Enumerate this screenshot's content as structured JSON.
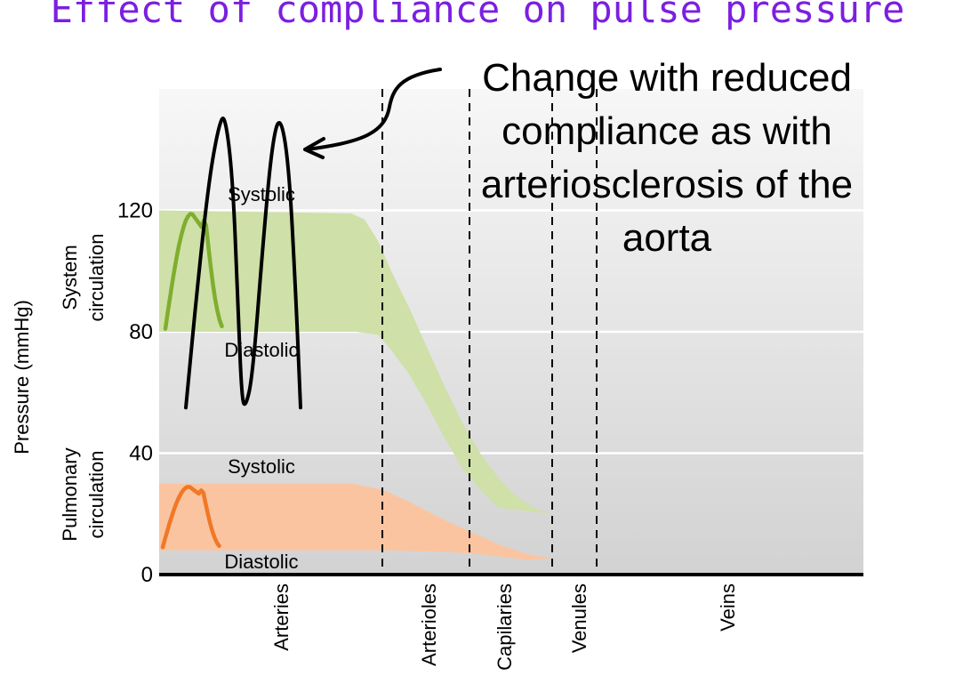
{
  "title": "Effect of compliance on pulse pressure",
  "annotation": "Change with reduced compliance as with arteriosclerosis of the aorta",
  "axes": {
    "ylabel": "Pressure (mmHg)",
    "y_ticks": [
      "0",
      "40",
      "80",
      "120"
    ],
    "band_labels": {
      "system": [
        "System",
        "circulation"
      ],
      "pulmonary": [
        "Pulmonary",
        "circulation"
      ]
    }
  },
  "curve_labels": {
    "system_systolic": "Systolic",
    "system_diastolic": "Diastolic",
    "pulmonary_systolic": "Systolic",
    "pulmonary_diastolic": "Diastolic"
  },
  "segments": [
    "Arteries",
    "Arterioles",
    "Capilaries",
    "Venules",
    "Veins"
  ],
  "colors": {
    "systemic_line": "#7fae2f",
    "systemic_fill": "#cfe0a8",
    "pulmonary_line": "#f07826",
    "pulmonary_fill": "#fbc4a0",
    "reduced_compliance_line": "#000000",
    "title": "#7b1fe0"
  },
  "chart_data": {
    "type": "line",
    "title": "Effect of compliance on pulse pressure",
    "ylabel": "Pressure (mmHg)",
    "ylim": [
      0,
      160
    ],
    "categories": [
      "Arteries",
      "Arterioles",
      "Capilaries",
      "Venules",
      "Veins"
    ],
    "series": [
      {
        "systolic": [
          120,
          90,
          40,
          20,
          0
        ],
        "diastolic": [
          80,
          50,
          30,
          20,
          0
        ]
      },
      {
        "systolic": [
          30,
          20,
          12,
          5,
          5
        ],
        "diastolic": [
          8,
          8,
          5,
          5,
          5
        ]
      },
      {
        "systolic": [
          150
        ],
        "diastolic": [
          55
        ]
      }
    ]
  }
}
